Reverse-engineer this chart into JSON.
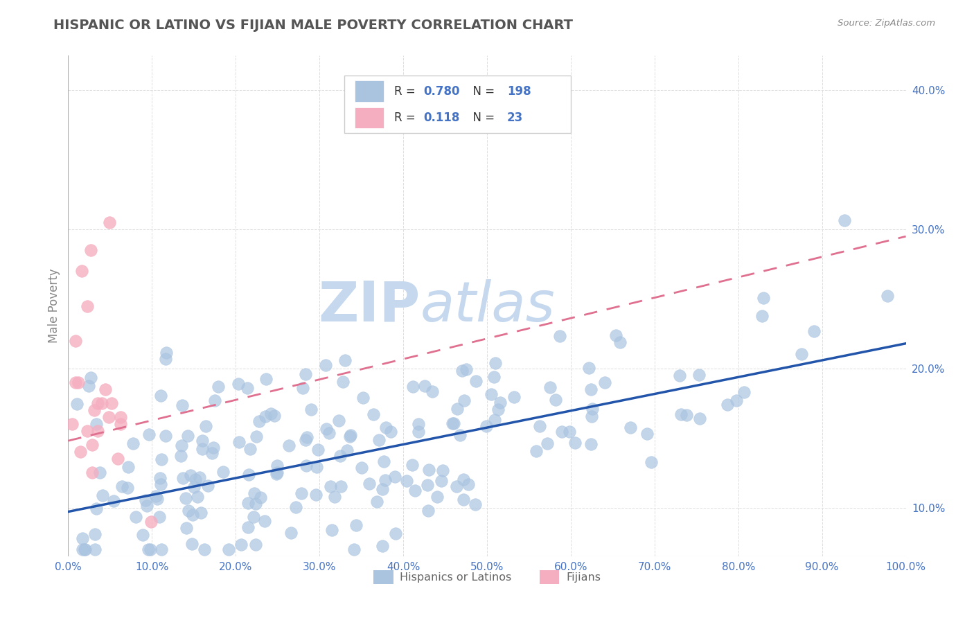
{
  "title": "HISPANIC OR LATINO VS FIJIAN MALE POVERTY CORRELATION CHART",
  "source_text": "Source: ZipAtlas.com",
  "ylabel": "Male Poverty",
  "xlim": [
    0.0,
    1.0
  ],
  "ylim": [
    0.065,
    0.425
  ],
  "xticks": [
    0.0,
    0.1,
    0.2,
    0.3,
    0.4,
    0.5,
    0.6,
    0.7,
    0.8,
    0.9,
    1.0
  ],
  "xtick_labels": [
    "0.0%",
    "10.0%",
    "20.0%",
    "30.0%",
    "40.0%",
    "50.0%",
    "60.0%",
    "70.0%",
    "80.0%",
    "90.0%",
    "100.0%"
  ],
  "yticks": [
    0.1,
    0.2,
    0.3,
    0.4
  ],
  "ytick_labels": [
    "10.0%",
    "20.0%",
    "30.0%",
    "40.0%"
  ],
  "blue_color": "#aac4e0",
  "pink_color": "#f5aec0",
  "blue_line_color": "#2255aa",
  "pink_line_color": "#e07090",
  "ytick_color": "#4472C4",
  "xtick_color": "#4472C4",
  "title_color": "#555555",
  "axis_color": "#aaaaaa",
  "grid_color": "#dddddd",
  "watermark_color": "#c5d8ee",
  "blue_line_start_y": 0.097,
  "blue_line_end_y": 0.218,
  "pink_line_start_y": 0.148,
  "pink_line_end_y": 0.295
}
